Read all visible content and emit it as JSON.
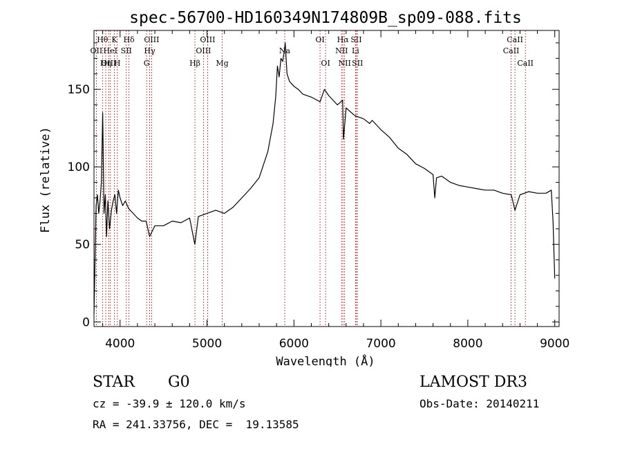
{
  "chart_data": {
    "type": "line",
    "title": "spec-56700-HD160349N174809B_sp09-088.fits",
    "xlabel": "Wavelength (Å)",
    "ylabel": "Flux (relative)",
    "xlim": [
      3700,
      9050
    ],
    "ylim": [
      -3,
      188
    ],
    "xticks": [
      4000,
      5000,
      6000,
      7000,
      8000,
      9000
    ],
    "yticks": [
      0,
      50,
      100,
      150
    ],
    "grid": false,
    "series": [
      {
        "x": [
          3700,
          3710,
          3725,
          3740,
          3755,
          3770,
          3785,
          3800,
          3815,
          3830,
          3845,
          3860,
          3880,
          3900,
          3920,
          3940,
          3960,
          3980,
          4000,
          4030,
          4060,
          4100,
          4150,
          4200,
          4250,
          4300,
          4340,
          4400,
          4500,
          4600,
          4700,
          4800,
          4860,
          4900,
          5000,
          5100,
          5200,
          5300,
          5400,
          5500,
          5600,
          5700,
          5760,
          5790,
          5810,
          5830,
          5850,
          5870,
          5890,
          5900,
          5920,
          5950,
          6000,
          6050,
          6100,
          6200,
          6300,
          6350,
          6400,
          6500,
          6560,
          6570,
          6600,
          6700,
          6800,
          6870,
          6900,
          7000,
          7100,
          7200,
          7300,
          7400,
          7500,
          7600,
          7620,
          7640,
          7700,
          7800,
          7900,
          8000,
          8100,
          8200,
          8300,
          8400,
          8500,
          8542,
          8600,
          8700,
          8800,
          8900,
          8960,
          8980,
          9000
        ],
        "y": [
          5,
          35,
          75,
          82,
          70,
          78,
          90,
          135,
          70,
          82,
          55,
          78,
          60,
          72,
          78,
          82,
          70,
          85,
          80,
          75,
          78,
          73,
          70,
          67,
          65,
          65,
          55,
          62,
          62,
          65,
          64,
          67,
          50,
          68,
          70,
          72,
          70,
          74,
          80,
          86,
          93,
          110,
          128,
          145,
          165,
          158,
          170,
          168,
          175,
          180,
          160,
          155,
          152,
          150,
          147,
          145,
          142,
          150,
          146,
          140,
          143,
          118,
          138,
          133,
          131,
          128,
          130,
          124,
          119,
          112,
          108,
          102,
          99,
          95,
          80,
          93,
          94,
          90,
          88,
          87,
          86,
          85,
          85,
          83,
          82,
          72,
          82,
          84,
          83,
          83,
          85,
          65,
          28
        ]
      }
    ],
    "spectral_lines": [
      {
        "label": "Hθ",
        "x": 3798,
        "row": 1
      },
      {
        "label": "OII",
        "x": 3727,
        "row": 2
      },
      {
        "label": "OIII",
        "x": 3869,
        "row": 3
      },
      {
        "label": "K",
        "x": 3934,
        "row": 1
      },
      {
        "label": "HeI",
        "x": 3889,
        "row": 2
      },
      {
        "label": "Hη",
        "x": 3835,
        "row": 3
      },
      {
        "label": "Hδ",
        "x": 4102,
        "row": 1
      },
      {
        "label": "SII",
        "x": 4072,
        "row": 2
      },
      {
        "label": "H",
        "x": 3968,
        "row": 3
      },
      {
        "label": "OIII",
        "x": 4363,
        "row": 1
      },
      {
        "label": "Hγ",
        "x": 4340,
        "row": 2
      },
      {
        "label": "G",
        "x": 4305,
        "row": 3
      },
      {
        "label": "OIII",
        "x": 5007,
        "row": 1
      },
      {
        "label": "OIII",
        "x": 4959,
        "row": 2
      },
      {
        "label": "Hβ",
        "x": 4861,
        "row": 3
      },
      {
        "label": "Mg",
        "x": 5175,
        "row": 3
      },
      {
        "label": "Na",
        "x": 5894,
        "row": 2
      },
      {
        "label": "OI",
        "x": 6300,
        "row": 1
      },
      {
        "label": "OI",
        "x": 6364,
        "row": 3
      },
      {
        "label": "Hα",
        "x": 6563,
        "row": 1
      },
      {
        "label": "SII",
        "x": 6717,
        "row": 1
      },
      {
        "label": "NII",
        "x": 6548,
        "row": 2
      },
      {
        "label": "Li",
        "x": 6708,
        "row": 2
      },
      {
        "label": "NII",
        "x": 6583,
        "row": 3
      },
      {
        "label": "SII",
        "x": 6731,
        "row": 3
      },
      {
        "label": "CaII",
        "x": 8542,
        "row": 1
      },
      {
        "label": "CaII",
        "x": 8498,
        "row": 2
      },
      {
        "label": "CaII",
        "x": 8662,
        "row": 3
      }
    ]
  },
  "info": {
    "object_class": "STAR",
    "subclass": "G0",
    "survey": "LAMOST DR3",
    "cz": "cz = -39.9 ± 120.0 km/s",
    "obs_date": "Obs-Date: 20140211",
    "coords": "RA = 241.33756, DEC =  19.13585"
  },
  "colors": {
    "spectrum": "#000000",
    "line_markers": "#b22222",
    "axes": "#000000"
  }
}
